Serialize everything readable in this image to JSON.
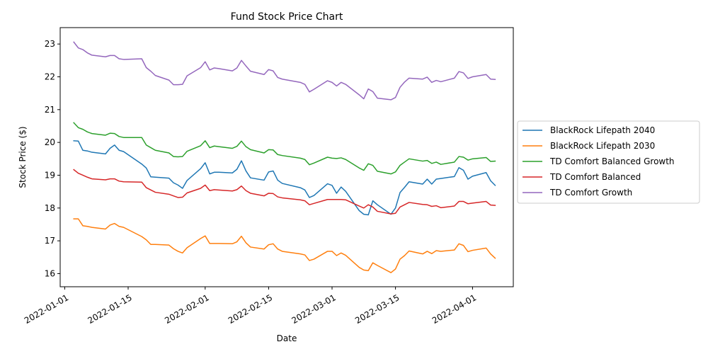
{
  "chart_data": {
    "type": "line",
    "title": "Fund Stock Price Chart",
    "xlabel": "Date",
    "ylabel": "Stock Price ($)",
    "xlim": [
      "2021-12-31",
      "2022-04-10"
    ],
    "ylim": [
      15.6,
      23.5
    ],
    "x_ticks": [
      "2022-01-01",
      "2022-01-15",
      "2022-02-01",
      "2022-02-15",
      "2022-03-01",
      "2022-03-15",
      "2022-04-01"
    ],
    "y_ticks": [
      16,
      17,
      18,
      19,
      20,
      21,
      22,
      23
    ],
    "grid": false,
    "legend_position": "center-right outside",
    "x": [
      "2022-01-03",
      "2022-01-04",
      "2022-01-05",
      "2022-01-06",
      "2022-01-07",
      "2022-01-10",
      "2022-01-11",
      "2022-01-12",
      "2022-01-13",
      "2022-01-14",
      "2022-01-18",
      "2022-01-19",
      "2022-01-20",
      "2022-01-21",
      "2022-01-24",
      "2022-01-25",
      "2022-01-26",
      "2022-01-27",
      "2022-01-28",
      "2022-01-31",
      "2022-02-01",
      "2022-02-02",
      "2022-02-03",
      "2022-02-04",
      "2022-02-07",
      "2022-02-08",
      "2022-02-09",
      "2022-02-10",
      "2022-02-11",
      "2022-02-14",
      "2022-02-15",
      "2022-02-16",
      "2022-02-17",
      "2022-02-18",
      "2022-02-22",
      "2022-02-23",
      "2022-02-24",
      "2022-02-25",
      "2022-02-28",
      "2022-03-01",
      "2022-03-02",
      "2022-03-03",
      "2022-03-04",
      "2022-03-07",
      "2022-03-08",
      "2022-03-09",
      "2022-03-10",
      "2022-03-11",
      "2022-03-14",
      "2022-03-15",
      "2022-03-16",
      "2022-03-17",
      "2022-03-18",
      "2022-03-21",
      "2022-03-22",
      "2022-03-23",
      "2022-03-24",
      "2022-03-25",
      "2022-03-28",
      "2022-03-29",
      "2022-03-30",
      "2022-03-31",
      "2022-04-01",
      "2022-04-04",
      "2022-04-05",
      "2022-04-06"
    ],
    "series": [
      {
        "name": "BlackRock Lifepath 2040",
        "color": "#1f77b4",
        "values": [
          20.05,
          20.04,
          19.76,
          19.74,
          19.7,
          19.65,
          19.82,
          19.92,
          19.76,
          19.72,
          19.34,
          19.22,
          18.95,
          18.94,
          18.91,
          18.77,
          18.7,
          18.6,
          18.84,
          19.2,
          19.38,
          19.04,
          19.09,
          19.09,
          19.07,
          19.18,
          19.44,
          19.13,
          18.92,
          18.85,
          19.1,
          19.13,
          18.85,
          18.75,
          18.62,
          18.55,
          18.32,
          18.38,
          18.74,
          18.69,
          18.45,
          18.64,
          18.51,
          17.92,
          17.81,
          17.79,
          18.22,
          18.1,
          17.81,
          18.0,
          18.47,
          18.63,
          18.8,
          18.73,
          18.88,
          18.73,
          18.88,
          18.9,
          18.96,
          19.23,
          19.15,
          18.88,
          18.97,
          19.08,
          18.83,
          18.69
        ]
      },
      {
        "name": "BlackRock Lifepath 2030",
        "color": "#ff7f0e",
        "values": [
          17.67,
          17.67,
          17.46,
          17.44,
          17.41,
          17.36,
          17.48,
          17.53,
          17.44,
          17.41,
          17.13,
          17.03,
          16.89,
          16.89,
          16.87,
          16.76,
          16.68,
          16.63,
          16.79,
          17.07,
          17.15,
          16.92,
          16.92,
          16.92,
          16.91,
          16.97,
          17.14,
          16.94,
          16.81,
          16.75,
          16.88,
          16.91,
          16.75,
          16.68,
          16.6,
          16.57,
          16.4,
          16.44,
          16.68,
          16.68,
          16.55,
          16.63,
          16.56,
          16.19,
          16.11,
          16.09,
          16.33,
          16.25,
          16.03,
          16.14,
          16.44,
          16.55,
          16.69,
          16.6,
          16.68,
          16.61,
          16.7,
          16.68,
          16.72,
          16.91,
          16.86,
          16.67,
          16.71,
          16.78,
          16.6,
          16.47
        ]
      },
      {
        "name": "TD Comfort Balanced Growth",
        "color": "#2ca02c",
        "values": [
          20.6,
          20.45,
          20.4,
          20.32,
          20.27,
          20.22,
          20.28,
          20.27,
          20.18,
          20.15,
          20.15,
          19.92,
          19.84,
          19.76,
          19.68,
          19.57,
          19.56,
          19.57,
          19.73,
          19.9,
          20.05,
          19.84,
          19.89,
          19.87,
          19.82,
          19.88,
          20.04,
          19.87,
          19.78,
          19.68,
          19.78,
          19.77,
          19.63,
          19.6,
          19.52,
          19.48,
          19.32,
          19.37,
          19.55,
          19.52,
          19.51,
          19.53,
          19.48,
          19.22,
          19.15,
          19.35,
          19.3,
          19.12,
          19.04,
          19.1,
          19.3,
          19.4,
          19.5,
          19.43,
          19.45,
          19.36,
          19.4,
          19.33,
          19.4,
          19.57,
          19.55,
          19.46,
          19.5,
          19.54,
          19.42,
          19.43
        ]
      },
      {
        "name": "TD Comfort Balanced",
        "color": "#d62728",
        "values": [
          19.17,
          19.06,
          19.0,
          18.94,
          18.89,
          18.86,
          18.89,
          18.89,
          18.82,
          18.8,
          18.79,
          18.62,
          18.55,
          18.48,
          18.42,
          18.37,
          18.32,
          18.33,
          18.46,
          18.6,
          18.7,
          18.53,
          18.56,
          18.55,
          18.52,
          18.56,
          18.67,
          18.53,
          18.45,
          18.37,
          18.45,
          18.44,
          18.34,
          18.31,
          18.25,
          18.22,
          18.1,
          18.14,
          18.26,
          18.26,
          18.26,
          18.26,
          18.25,
          18.06,
          18.0,
          18.1,
          18.03,
          17.9,
          17.82,
          17.84,
          18.03,
          18.1,
          18.17,
          18.11,
          18.1,
          18.05,
          18.07,
          18.01,
          18.06,
          18.2,
          18.2,
          18.13,
          18.15,
          18.2,
          18.09,
          18.08
        ]
      },
      {
        "name": "TD Comfort Growth",
        "color": "#9467bd",
        "values": [
          23.06,
          22.88,
          22.83,
          22.73,
          22.66,
          22.61,
          22.65,
          22.65,
          22.55,
          22.53,
          22.55,
          22.28,
          22.17,
          22.04,
          21.9,
          21.76,
          21.76,
          21.77,
          22.03,
          22.28,
          22.46,
          22.21,
          22.27,
          22.25,
          22.18,
          22.27,
          22.5,
          22.33,
          22.17,
          22.07,
          22.22,
          22.18,
          21.98,
          21.93,
          21.83,
          21.77,
          21.54,
          21.62,
          21.88,
          21.83,
          21.72,
          21.83,
          21.77,
          21.45,
          21.33,
          21.63,
          21.55,
          21.35,
          21.3,
          21.37,
          21.68,
          21.84,
          21.96,
          21.93,
          21.99,
          21.83,
          21.89,
          21.85,
          21.96,
          22.16,
          22.12,
          21.95,
          22.0,
          22.07,
          21.93,
          21.92
        ]
      }
    ]
  }
}
